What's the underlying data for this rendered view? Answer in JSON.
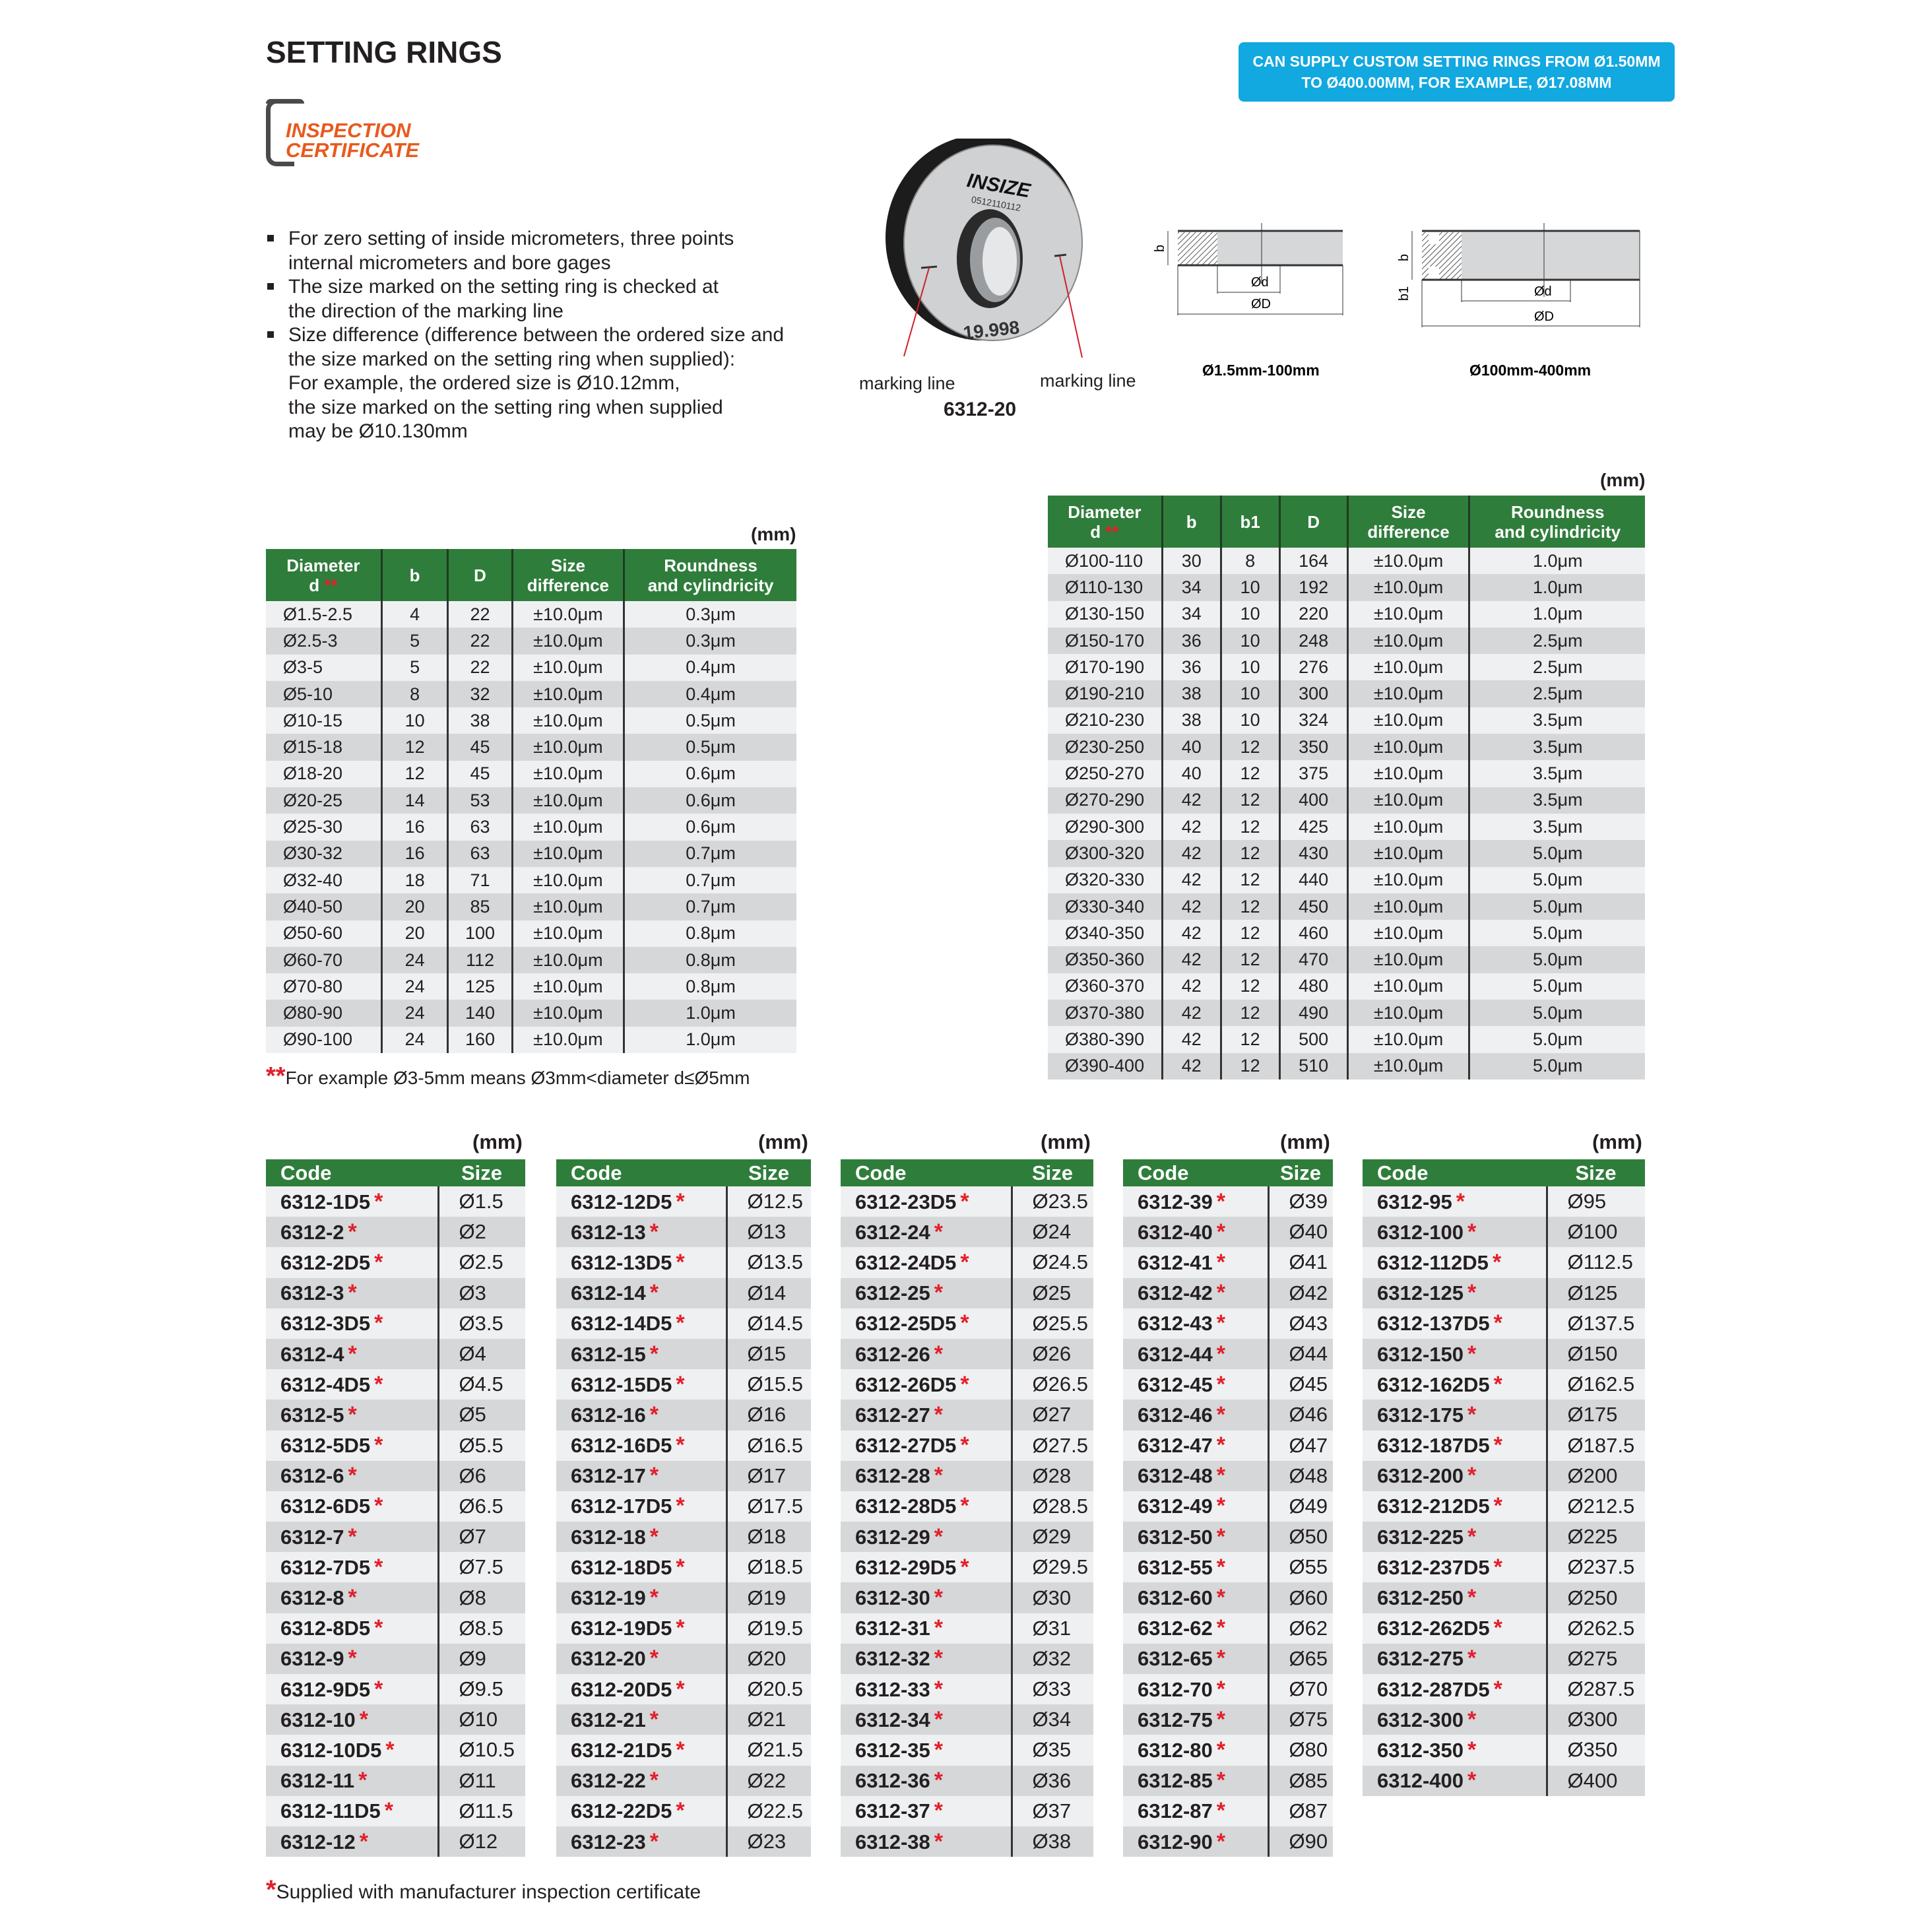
{
  "title": "SETTING RINGS",
  "banner": {
    "line1": "CAN SUPPLY CUSTOM SETTING RINGS FROM Ø1.50MM",
    "line2": "TO Ø400.00MM, FOR EXAMPLE, Ø17.08MM",
    "color": "#12a8e0"
  },
  "logo": {
    "line1": "INSPECTION",
    "line2": "CERTIFICATE"
  },
  "bullets": [
    [
      "For zero setting of inside micrometers, three points",
      "internal micrometers and bore gages"
    ],
    [
      "The size marked on the setting ring is checked at",
      "the direction of the marking line"
    ],
    [
      "Size difference (difference between the ordered size and",
      "the size marked on the setting ring when supplied):",
      "For example, the ordered size is Ø10.12mm,",
      "the size marked on the setting ring when supplied",
      "may be Ø10.130mm"
    ]
  ],
  "photo": {
    "brand": "INSIZE",
    "serial": "0512110112",
    "marking": "19.998",
    "marking_line_left": "marking line",
    "marking_line_right": "marking line",
    "model": "6312-20"
  },
  "diagrams": {
    "small": {
      "caption": "Ø1.5mm-100mm",
      "b": "b",
      "d": "Ød",
      "D": "ØD"
    },
    "large": {
      "caption": "Ø100mm-400mm",
      "b": "b",
      "b1": "b1",
      "d": "Ød",
      "D": "ØD"
    }
  },
  "colors": {
    "header_green": "#2f7d3b",
    "row_dark": "#d5d7d9",
    "row_light": "#eff0f1",
    "asterisk": "#e2202a"
  },
  "spec_small": {
    "unit": "(mm)",
    "headers": [
      "Diameter\nd",
      "b",
      "D",
      "Size\ndifference",
      "Roundness\nand cylindricity"
    ],
    "rows": [
      [
        "Ø1.5-2.5",
        "4",
        "22",
        "±10.0μm",
        "0.3μm"
      ],
      [
        "Ø2.5-3",
        "5",
        "22",
        "±10.0μm",
        "0.3μm"
      ],
      [
        "Ø3-5",
        "5",
        "22",
        "±10.0μm",
        "0.4μm"
      ],
      [
        "Ø5-10",
        "8",
        "32",
        "±10.0μm",
        "0.4μm"
      ],
      [
        "Ø10-15",
        "10",
        "38",
        "±10.0μm",
        "0.5μm"
      ],
      [
        "Ø15-18",
        "12",
        "45",
        "±10.0μm",
        "0.5μm"
      ],
      [
        "Ø18-20",
        "12",
        "45",
        "±10.0μm",
        "0.6μm"
      ],
      [
        "Ø20-25",
        "14",
        "53",
        "±10.0μm",
        "0.6μm"
      ],
      [
        "Ø25-30",
        "16",
        "63",
        "±10.0μm",
        "0.6μm"
      ],
      [
        "Ø30-32",
        "16",
        "63",
        "±10.0μm",
        "0.7μm"
      ],
      [
        "Ø32-40",
        "18",
        "71",
        "±10.0μm",
        "0.7μm"
      ],
      [
        "Ø40-50",
        "20",
        "85",
        "±10.0μm",
        "0.7μm"
      ],
      [
        "Ø50-60",
        "20",
        "100",
        "±10.0μm",
        "0.8μm"
      ],
      [
        "Ø60-70",
        "24",
        "112",
        "±10.0μm",
        "0.8μm"
      ],
      [
        "Ø70-80",
        "24",
        "125",
        "±10.0μm",
        "0.8μm"
      ],
      [
        "Ø80-90",
        "24",
        "140",
        "±10.0μm",
        "1.0μm"
      ],
      [
        "Ø90-100",
        "24",
        "160",
        "±10.0μm",
        "1.0μm"
      ]
    ],
    "footnote_mark": "**",
    "footnote": "For example Ø3-5mm means Ø3mm<diameter d≤Ø5mm"
  },
  "spec_large": {
    "unit": "(mm)",
    "headers": [
      "Diameter\nd",
      "b",
      "b1",
      "D",
      "Size\ndifference",
      "Roundness\nand cylindricity"
    ],
    "rows": [
      [
        "Ø100-110",
        "30",
        "8",
        "164",
        "±10.0μm",
        "1.0μm"
      ],
      [
        "Ø110-130",
        "34",
        "10",
        "192",
        "±10.0μm",
        "1.0μm"
      ],
      [
        "Ø130-150",
        "34",
        "10",
        "220",
        "±10.0μm",
        "1.0μm"
      ],
      [
        "Ø150-170",
        "36",
        "10",
        "248",
        "±10.0μm",
        "2.5μm"
      ],
      [
        "Ø170-190",
        "36",
        "10",
        "276",
        "±10.0μm",
        "2.5μm"
      ],
      [
        "Ø190-210",
        "38",
        "10",
        "300",
        "±10.0μm",
        "2.5μm"
      ],
      [
        "Ø210-230",
        "38",
        "10",
        "324",
        "±10.0μm",
        "3.5μm"
      ],
      [
        "Ø230-250",
        "40",
        "12",
        "350",
        "±10.0μm",
        "3.5μm"
      ],
      [
        "Ø250-270",
        "40",
        "12",
        "375",
        "±10.0μm",
        "3.5μm"
      ],
      [
        "Ø270-290",
        "42",
        "12",
        "400",
        "±10.0μm",
        "3.5μm"
      ],
      [
        "Ø290-300",
        "42",
        "12",
        "425",
        "±10.0μm",
        "3.5μm"
      ],
      [
        "Ø300-320",
        "42",
        "12",
        "430",
        "±10.0μm",
        "5.0μm"
      ],
      [
        "Ø320-330",
        "42",
        "12",
        "440",
        "±10.0μm",
        "5.0μm"
      ],
      [
        "Ø330-340",
        "42",
        "12",
        "450",
        "±10.0μm",
        "5.0μm"
      ],
      [
        "Ø340-350",
        "42",
        "12",
        "460",
        "±10.0μm",
        "5.0μm"
      ],
      [
        "Ø350-360",
        "42",
        "12",
        "470",
        "±10.0μm",
        "5.0μm"
      ],
      [
        "Ø360-370",
        "42",
        "12",
        "480",
        "±10.0μm",
        "5.0μm"
      ],
      [
        "Ø370-380",
        "42",
        "12",
        "490",
        "±10.0μm",
        "5.0μm"
      ],
      [
        "Ø380-390",
        "42",
        "12",
        "500",
        "±10.0μm",
        "5.0μm"
      ],
      [
        "Ø390-400",
        "42",
        "12",
        "510",
        "±10.0μm",
        "5.0μm"
      ]
    ]
  },
  "code_tables": {
    "unit": "(mm)",
    "headers": [
      "Code",
      "Size"
    ],
    "tables": [
      [
        [
          "6312-1D5",
          "Ø1.5"
        ],
        [
          "6312-2",
          "Ø2"
        ],
        [
          "6312-2D5",
          "Ø2.5"
        ],
        [
          "6312-3",
          "Ø3"
        ],
        [
          "6312-3D5",
          "Ø3.5"
        ],
        [
          "6312-4",
          "Ø4"
        ],
        [
          "6312-4D5",
          "Ø4.5"
        ],
        [
          "6312-5",
          "Ø5"
        ],
        [
          "6312-5D5",
          "Ø5.5"
        ],
        [
          "6312-6",
          "Ø6"
        ],
        [
          "6312-6D5",
          "Ø6.5"
        ],
        [
          "6312-7",
          "Ø7"
        ],
        [
          "6312-7D5",
          "Ø7.5"
        ],
        [
          "6312-8",
          "Ø8"
        ],
        [
          "6312-8D5",
          "Ø8.5"
        ],
        [
          "6312-9",
          "Ø9"
        ],
        [
          "6312-9D5",
          "Ø9.5"
        ],
        [
          "6312-10",
          "Ø10"
        ],
        [
          "6312-10D5",
          "Ø10.5"
        ],
        [
          "6312-11",
          "Ø11"
        ],
        [
          "6312-11D5",
          "Ø11.5"
        ],
        [
          "6312-12",
          "Ø12"
        ]
      ],
      [
        [
          "6312-12D5",
          "Ø12.5"
        ],
        [
          "6312-13",
          "Ø13"
        ],
        [
          "6312-13D5",
          "Ø13.5"
        ],
        [
          "6312-14",
          "Ø14"
        ],
        [
          "6312-14D5",
          "Ø14.5"
        ],
        [
          "6312-15",
          "Ø15"
        ],
        [
          "6312-15D5",
          "Ø15.5"
        ],
        [
          "6312-16",
          "Ø16"
        ],
        [
          "6312-16D5",
          "Ø16.5"
        ],
        [
          "6312-17",
          "Ø17"
        ],
        [
          "6312-17D5",
          "Ø17.5"
        ],
        [
          "6312-18",
          "Ø18"
        ],
        [
          "6312-18D5",
          "Ø18.5"
        ],
        [
          "6312-19",
          "Ø19"
        ],
        [
          "6312-19D5",
          "Ø19.5"
        ],
        [
          "6312-20",
          "Ø20"
        ],
        [
          "6312-20D5",
          "Ø20.5"
        ],
        [
          "6312-21",
          "Ø21"
        ],
        [
          "6312-21D5",
          "Ø21.5"
        ],
        [
          "6312-22",
          "Ø22"
        ],
        [
          "6312-22D5",
          "Ø22.5"
        ],
        [
          "6312-23",
          "Ø23"
        ]
      ],
      [
        [
          "6312-23D5",
          "Ø23.5"
        ],
        [
          "6312-24",
          "Ø24"
        ],
        [
          "6312-24D5",
          "Ø24.5"
        ],
        [
          "6312-25",
          "Ø25"
        ],
        [
          "6312-25D5",
          "Ø25.5"
        ],
        [
          "6312-26",
          "Ø26"
        ],
        [
          "6312-26D5",
          "Ø26.5"
        ],
        [
          "6312-27",
          "Ø27"
        ],
        [
          "6312-27D5",
          "Ø27.5"
        ],
        [
          "6312-28",
          "Ø28"
        ],
        [
          "6312-28D5",
          "Ø28.5"
        ],
        [
          "6312-29",
          "Ø29"
        ],
        [
          "6312-29D5",
          "Ø29.5"
        ],
        [
          "6312-30",
          "Ø30"
        ],
        [
          "6312-31",
          "Ø31"
        ],
        [
          "6312-32",
          "Ø32"
        ],
        [
          "6312-33",
          "Ø33"
        ],
        [
          "6312-34",
          "Ø34"
        ],
        [
          "6312-35",
          "Ø35"
        ],
        [
          "6312-36",
          "Ø36"
        ],
        [
          "6312-37",
          "Ø37"
        ],
        [
          "6312-38",
          "Ø38"
        ]
      ],
      [
        [
          "6312-39",
          "Ø39"
        ],
        [
          "6312-40",
          "Ø40"
        ],
        [
          "6312-41",
          "Ø41"
        ],
        [
          "6312-42",
          "Ø42"
        ],
        [
          "6312-43",
          "Ø43"
        ],
        [
          "6312-44",
          "Ø44"
        ],
        [
          "6312-45",
          "Ø45"
        ],
        [
          "6312-46",
          "Ø46"
        ],
        [
          "6312-47",
          "Ø47"
        ],
        [
          "6312-48",
          "Ø48"
        ],
        [
          "6312-49",
          "Ø49"
        ],
        [
          "6312-50",
          "Ø50"
        ],
        [
          "6312-55",
          "Ø55"
        ],
        [
          "6312-60",
          "Ø60"
        ],
        [
          "6312-62",
          "Ø62"
        ],
        [
          "6312-65",
          "Ø65"
        ],
        [
          "6312-70",
          "Ø70"
        ],
        [
          "6312-75",
          "Ø75"
        ],
        [
          "6312-80",
          "Ø80"
        ],
        [
          "6312-85",
          "Ø85"
        ],
        [
          "6312-87",
          "Ø87"
        ],
        [
          "6312-90",
          "Ø90"
        ]
      ],
      [
        [
          "6312-95",
          "Ø95"
        ],
        [
          "6312-100",
          "Ø100"
        ],
        [
          "6312-112D5",
          "Ø112.5"
        ],
        [
          "6312-125",
          "Ø125"
        ],
        [
          "6312-137D5",
          "Ø137.5"
        ],
        [
          "6312-150",
          "Ø150"
        ],
        [
          "6312-162D5",
          "Ø162.5"
        ],
        [
          "6312-175",
          "Ø175"
        ],
        [
          "6312-187D5",
          "Ø187.5"
        ],
        [
          "6312-200",
          "Ø200"
        ],
        [
          "6312-212D5",
          "Ø212.5"
        ],
        [
          "6312-225",
          "Ø225"
        ],
        [
          "6312-237D5",
          "Ø237.5"
        ],
        [
          "6312-250",
          "Ø250"
        ],
        [
          "6312-262D5",
          "Ø262.5"
        ],
        [
          "6312-275",
          "Ø275"
        ],
        [
          "6312-287D5",
          "Ø287.5"
        ],
        [
          "6312-300",
          "Ø300"
        ],
        [
          "6312-350",
          "Ø350"
        ],
        [
          "6312-400",
          "Ø400"
        ]
      ]
    ],
    "asterisk": "*",
    "footnote_mark": "*",
    "footnote": "Supplied with manufacturer inspection certificate"
  }
}
